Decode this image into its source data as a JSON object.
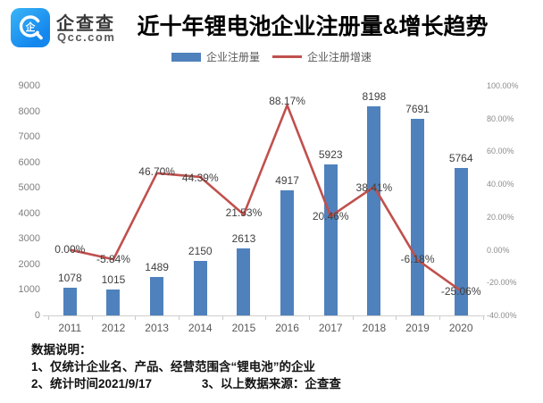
{
  "header": {
    "logo": {
      "brand": "企查查",
      "domain": "Qcc.com"
    },
    "title": "近十年锂电池企业注册量&增长趋势"
  },
  "legend": {
    "bar_label": "企业注册量",
    "line_label": "企业注册增速"
  },
  "colors": {
    "bar": "#4F81BD",
    "line": "#C0504D",
    "axis_text": "#7f7f7f",
    "data_label_text": "#404040",
    "axis_line": "#d0cece",
    "logo_blue": "#1890EF"
  },
  "chart_data": {
    "type": "bar",
    "subtype": "combo-bar-line",
    "title": "近十年锂电池企业注册量&增长趋势",
    "categories": [
      "2011",
      "2012",
      "2013",
      "2014",
      "2015",
      "2016",
      "2017",
      "2018",
      "2019",
      "2020"
    ],
    "series": [
      {
        "name": "企业注册量",
        "type": "bar",
        "axis": "left",
        "values": [
          1078,
          1015,
          1489,
          2150,
          2613,
          4917,
          5923,
          8198,
          7691,
          5764
        ],
        "labels": [
          "1078",
          "1015",
          "1489",
          "2150",
          "2613",
          "4917",
          "5923",
          "8198",
          "7691",
          "5764"
        ]
      },
      {
        "name": "企业注册增速",
        "type": "line",
        "axis": "right",
        "values": [
          0.0,
          -5.84,
          46.7,
          44.39,
          21.53,
          88.17,
          20.46,
          38.41,
          -6.18,
          -25.06
        ],
        "labels": [
          "0.00%",
          "-5.84%",
          "46.70%",
          "44.39%",
          "21.53%",
          "88.17%",
          "20.46%",
          "38.41%",
          "-6.18%",
          "-25.06%"
        ],
        "label_dy": [
          -1,
          0,
          -2,
          1,
          -2,
          -5,
          0,
          1,
          -1,
          0
        ]
      }
    ],
    "left_axis": {
      "min": 0,
      "max": 9000,
      "step": 1000,
      "tick_labels": [
        "0",
        "1000",
        "2000",
        "3000",
        "4000",
        "5000",
        "6000",
        "7000",
        "8000",
        "9000"
      ]
    },
    "right_axis": {
      "min": -40,
      "max": 100,
      "step": 20,
      "tick_labels": [
        "-40.00%",
        "-20.00%",
        "0.00%",
        "20.00%",
        "40.00%",
        "60.00%",
        "80.00%",
        "100.00%"
      ]
    },
    "grid": false,
    "legend_position": "top",
    "xlabel": "",
    "ylabel": ""
  },
  "footer": {
    "heading": "数据说明：",
    "line1": "1、仅统计企业名、产品、经营范围含“锂电池”的企业",
    "line2": "2、统计时间2021/9/17",
    "line3": "3、以上数据来源：企查查"
  }
}
